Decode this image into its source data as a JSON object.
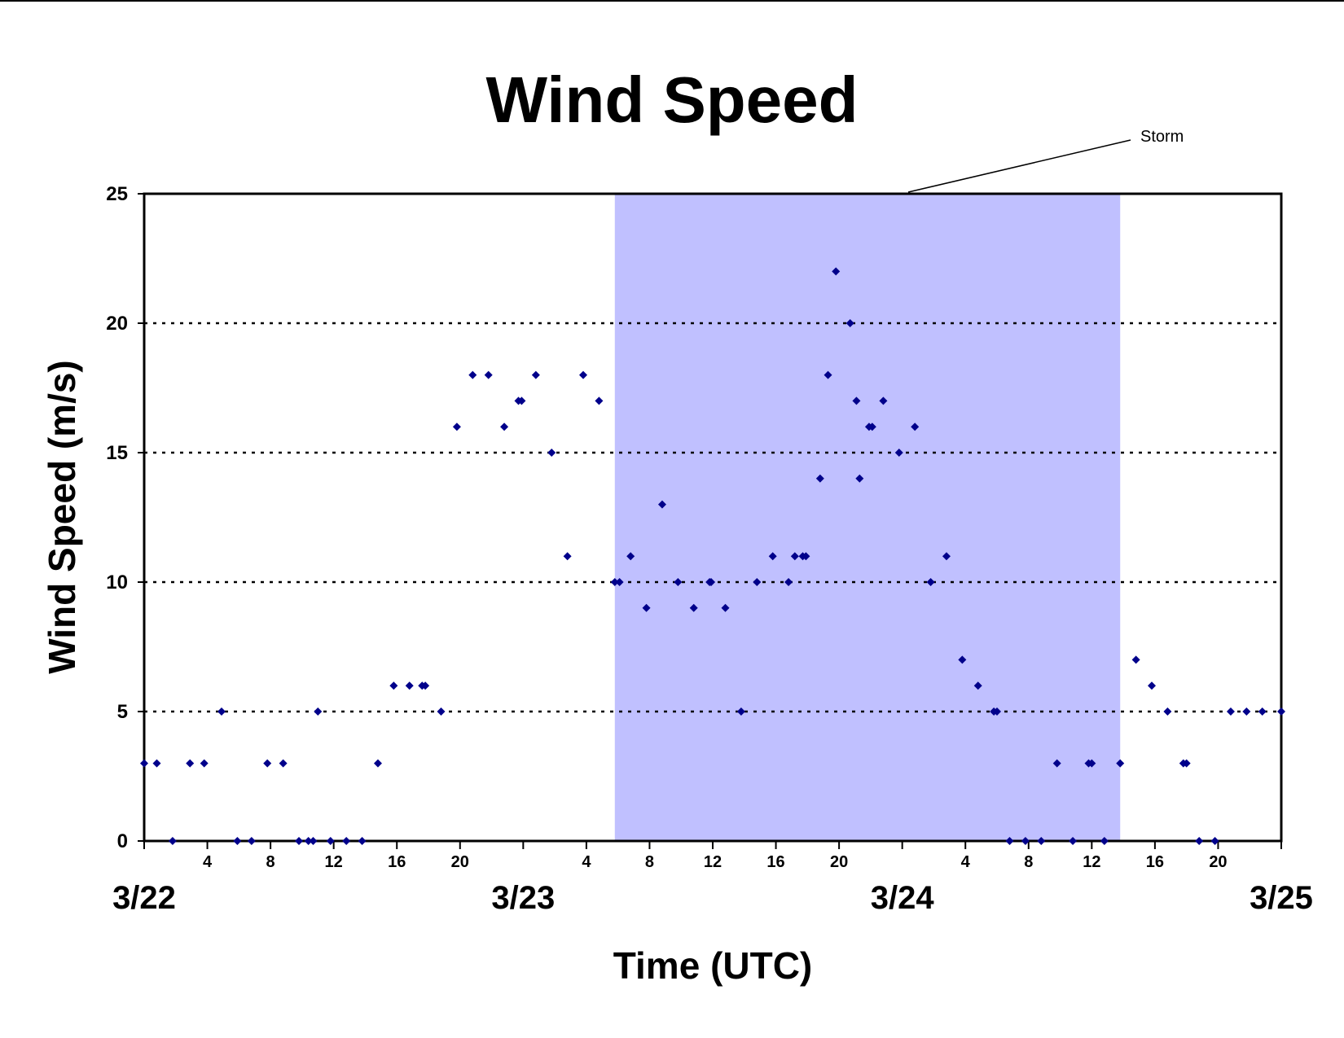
{
  "chart_data": {
    "type": "scatter",
    "title": "Wind Speed",
    "xlabel": "Time (UTC)",
    "ylabel": "Wind Speed (m/s)",
    "xunit": "hours",
    "xlim": [
      0,
      72
    ],
    "ylim": [
      0,
      25
    ],
    "yticks": [
      0,
      5,
      10,
      15,
      20,
      25
    ],
    "grid": "horizontal dotted at 5, 10, 15, 20",
    "legend": "none",
    "colors": {
      "points": "#00008b",
      "storm_band": "#c0c0ff",
      "grid": "#000000"
    },
    "hour_ticks": [
      {
        "x": 4,
        "label": "4"
      },
      {
        "x": 8,
        "label": "8"
      },
      {
        "x": 12,
        "label": "12"
      },
      {
        "x": 16,
        "label": "16"
      },
      {
        "x": 20,
        "label": "20"
      },
      {
        "x": 28,
        "label": "4"
      },
      {
        "x": 32,
        "label": "8"
      },
      {
        "x": 36,
        "label": "12"
      },
      {
        "x": 40,
        "label": "16"
      },
      {
        "x": 44,
        "label": "20"
      },
      {
        "x": 52,
        "label": "4"
      },
      {
        "x": 56,
        "label": "8"
      },
      {
        "x": 60,
        "label": "12"
      },
      {
        "x": 64,
        "label": "16"
      },
      {
        "x": 68,
        "label": "20"
      }
    ],
    "day_labels": [
      {
        "x": 0,
        "label": "3/22"
      },
      {
        "x": 24,
        "label": "3/23"
      },
      {
        "x": 48,
        "label": "3/24"
      },
      {
        "x": 72,
        "label": "3/25"
      }
    ],
    "storm_band": {
      "x_start": 29.8,
      "x_end": 61.8
    },
    "annotations": [
      {
        "text": "Storm"
      }
    ],
    "points": [
      [
        0,
        3
      ],
      [
        0.8,
        3
      ],
      [
        1.8,
        0
      ],
      [
        2.9,
        3
      ],
      [
        3.8,
        3
      ],
      [
        4.9,
        5
      ],
      [
        5.9,
        0
      ],
      [
        6.8,
        0
      ],
      [
        7.8,
        3
      ],
      [
        8.8,
        3
      ],
      [
        9.8,
        0
      ],
      [
        10.4,
        0
      ],
      [
        10.7,
        0
      ],
      [
        11,
        5
      ],
      [
        11.8,
        0
      ],
      [
        12.8,
        0
      ],
      [
        13.8,
        0
      ],
      [
        14.8,
        3
      ],
      [
        15.8,
        6
      ],
      [
        16.8,
        6
      ],
      [
        17.6,
        6
      ],
      [
        17.8,
        6
      ],
      [
        18.8,
        5
      ],
      [
        19.8,
        16
      ],
      [
        20.8,
        18
      ],
      [
        21.8,
        18
      ],
      [
        22.8,
        16
      ],
      [
        23.7,
        17
      ],
      [
        23.9,
        17
      ],
      [
        24.8,
        18
      ],
      [
        25.8,
        15
      ],
      [
        26.8,
        11
      ],
      [
        27.8,
        18
      ],
      [
        28.8,
        17
      ],
      [
        29.8,
        10
      ],
      [
        30.1,
        10
      ],
      [
        30.8,
        11
      ],
      [
        31.8,
        9
      ],
      [
        32.8,
        13
      ],
      [
        33.8,
        10
      ],
      [
        34.8,
        9
      ],
      [
        35.8,
        10
      ],
      [
        35.9,
        10
      ],
      [
        36.8,
        9
      ],
      [
        37.8,
        5
      ],
      [
        38.8,
        10
      ],
      [
        39.8,
        11
      ],
      [
        40.8,
        10
      ],
      [
        41.2,
        11
      ],
      [
        41.7,
        11
      ],
      [
        41.9,
        11
      ],
      [
        42.8,
        14
      ],
      [
        43.3,
        18
      ],
      [
        43.8,
        22
      ],
      [
        44.7,
        20
      ],
      [
        45.1,
        17
      ],
      [
        45.3,
        14
      ],
      [
        45.9,
        16
      ],
      [
        46.1,
        16
      ],
      [
        46.8,
        17
      ],
      [
        47.8,
        15
      ],
      [
        48.8,
        16
      ],
      [
        49.8,
        10
      ],
      [
        50.8,
        11
      ],
      [
        51.8,
        7
      ],
      [
        52.8,
        6
      ],
      [
        53.8,
        5
      ],
      [
        54,
        5
      ],
      [
        54.8,
        0
      ],
      [
        55.8,
        0
      ],
      [
        56.8,
        0
      ],
      [
        57.8,
        3
      ],
      [
        58.8,
        0
      ],
      [
        59.8,
        3
      ],
      [
        60,
        3
      ],
      [
        60.8,
        0
      ],
      [
        61.8,
        3
      ],
      [
        62.8,
        7
      ],
      [
        63.8,
        6
      ],
      [
        64.8,
        5
      ],
      [
        65.8,
        3
      ],
      [
        66,
        3
      ],
      [
        66.8,
        0
      ],
      [
        67.8,
        0
      ],
      [
        68.8,
        5
      ],
      [
        69.8,
        5
      ],
      [
        70.8,
        5
      ],
      [
        72,
        5
      ]
    ]
  }
}
